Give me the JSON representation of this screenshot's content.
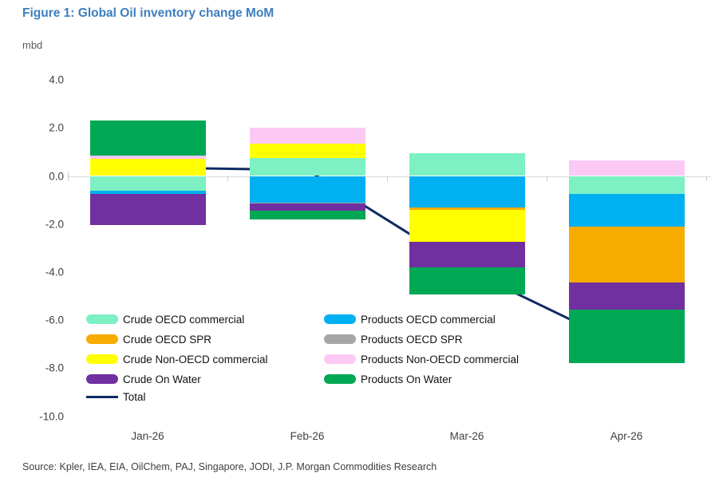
{
  "figure": {
    "title": "Figure 1: Global Oil inventory change MoM",
    "unit_label": "mbd",
    "source": "Source: Kpler, IEA, EIA, OilChem, PAJ, Singapore, JODI, J.P. Morgan Commodities Research"
  },
  "colors": {
    "title_blue": "#3d7ebf",
    "axis_text": "#3f3f3f",
    "gridline": "#d9d9d9",
    "total_line": "#0f2b63"
  },
  "chart_data": {
    "type": "bar",
    "subtype": "stacked-bars-with-total-line",
    "title": "Figure 1: Global Oil inventory change MoM",
    "ylabel": "mbd",
    "ylim": [
      -10.0,
      4.0
    ],
    "grid": "zero-line-only",
    "categories": [
      "Jan-26",
      "Feb-26",
      "Mar-26",
      "Apr-26"
    ],
    "series": [
      {
        "name": "Crude OECD commercial",
        "type": "bar",
        "color": "#7df0c4",
        "values": [
          -0.6,
          0.75,
          0.95,
          -0.75
        ]
      },
      {
        "name": "Crude OECD SPR",
        "type": "bar",
        "color": "#f7ac00",
        "values": [
          0.0,
          0.0,
          -0.1,
          -2.35
        ]
      },
      {
        "name": "Crude Non-OECD commercial",
        "type": "bar",
        "color": "#ffff00",
        "values": [
          0.7,
          0.6,
          -1.35,
          0.0
        ]
      },
      {
        "name": "Crude On Water",
        "type": "bar",
        "color": "#7030a0",
        "values": [
          -1.3,
          -0.3,
          -1.05,
          -1.1
        ]
      },
      {
        "name": "Products OECD commercial",
        "type": "bar",
        "color": "#00b0f0",
        "values": [
          -0.15,
          -1.1,
          -1.3,
          -1.35
        ]
      },
      {
        "name": "Products OECD SPR",
        "type": "bar",
        "color": "#a6a6a6",
        "values": [
          0.0,
          -0.05,
          0.0,
          0.0
        ]
      },
      {
        "name": "Products Non-OECD commercial",
        "type": "bar",
        "color": "#fcc9f5",
        "values": [
          0.15,
          0.65,
          0.0,
          0.65
        ]
      },
      {
        "name": "Products On Water",
        "type": "bar",
        "color": "#00a854",
        "values": [
          1.45,
          -0.35,
          -1.15,
          -2.25
        ]
      },
      {
        "name": "Total",
        "type": "line",
        "color": "#0f2b63",
        "values": [
          0.35,
          0.25,
          -3.9,
          -7.1
        ]
      }
    ],
    "positive_stack_order": [
      "Crude OECD commercial",
      "Crude Non-OECD commercial",
      "Products Non-OECD commercial",
      "Products On Water"
    ],
    "negative_stack_order": [
      "Crude OECD commercial",
      "Products OECD commercial",
      "Products OECD SPR",
      "Crude OECD SPR",
      "Crude Non-OECD commercial",
      "Crude On Water",
      "Products On Water"
    ],
    "y_ticks": {
      "labels": [
        "4.0",
        "2.0",
        "0.0",
        "-2.0",
        "-4.0",
        "-6.0",
        "-8.0",
        "-10.0"
      ],
      "values": [
        4,
        2,
        0,
        -2,
        -4,
        -6,
        -8,
        -10
      ]
    },
    "legend": {
      "left_column": [
        "Crude OECD commercial",
        "Crude OECD SPR",
        "Crude Non-OECD commercial",
        "Crude On Water",
        "Total"
      ],
      "right_column": [
        "Products OECD commercial",
        "Products OECD SPR",
        "Products Non-OECD commercial",
        "Products On Water"
      ]
    }
  }
}
